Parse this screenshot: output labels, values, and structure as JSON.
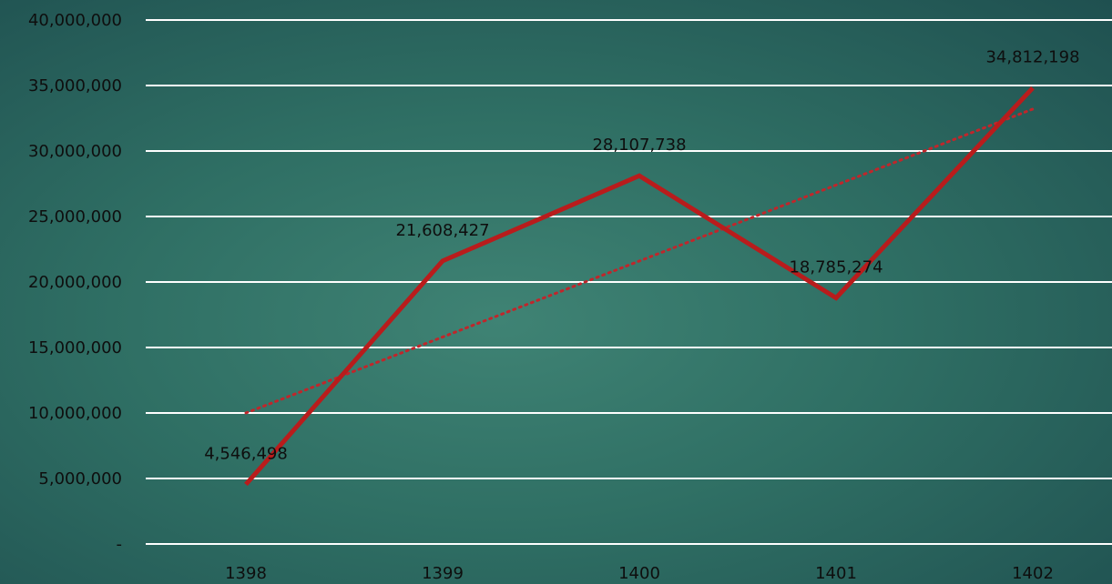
{
  "chart_data": {
    "type": "line",
    "title": "",
    "xlabel": "",
    "ylabel": "",
    "categories": [
      "1398",
      "1399",
      "1400",
      "1401",
      "1402"
    ],
    "series": [
      {
        "values": [
          4546498,
          21608427,
          28107738,
          18785274,
          34812198
        ],
        "data_labels": [
          "4,546,498",
          "21,608,427",
          "28,107,738",
          "18,785,274",
          "34,812,198"
        ],
        "color": "#b91c1c"
      }
    ],
    "trendline": {
      "type": "linear",
      "style": "dotted",
      "color": "#c0262b",
      "start": 10000000,
      "end": 33200000
    },
    "ylim": [
      0,
      40000000
    ],
    "y_ticks": [
      0,
      5000000,
      10000000,
      15000000,
      20000000,
      25000000,
      30000000,
      35000000,
      40000000
    ],
    "y_tick_labels": [
      "-",
      "5,000,000",
      "10,000,000",
      "15,000,000",
      "20,000,000",
      "25,000,000",
      "30,000,000",
      "35,000,000",
      "40,000,000"
    ],
    "grid": true,
    "legend": "none",
    "gridline_color": "#ffffff"
  }
}
